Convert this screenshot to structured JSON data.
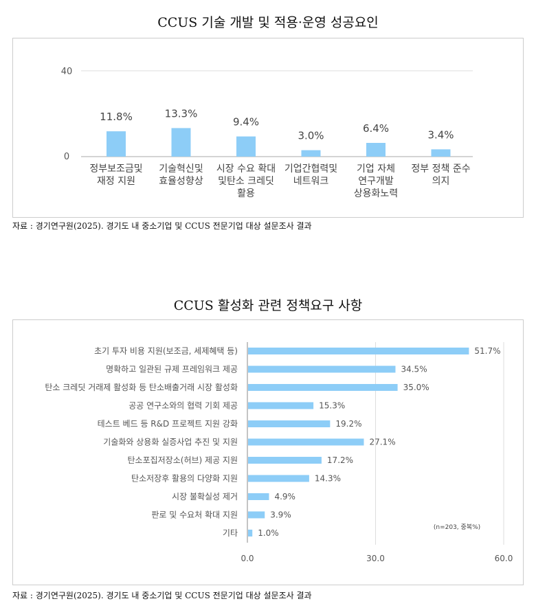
{
  "chart_data": [
    {
      "type": "bar",
      "title": "CCUS 기술 개발 및 적용·운영 성공요인",
      "ylim": [
        0,
        40
      ],
      "yticks": [
        "0",
        "40"
      ],
      "categories": [
        [
          "정부보조금및",
          "재정 지원"
        ],
        [
          "기술혁신및",
          "효율성향상"
        ],
        [
          "시장 수요 확대",
          "및탄소 크레딧",
          "활용"
        ],
        [
          "기업간협력및",
          "네트워크"
        ],
        [
          "기업 자체",
          "연구개발",
          "상용화노력"
        ],
        [
          "정부 정책 준수",
          "의지"
        ]
      ],
      "values": [
        11.8,
        13.3,
        9.4,
        3.0,
        6.4,
        3.4
      ],
      "labels": [
        "11.8%",
        "13.3%",
        "9.4%",
        "3.0%",
        "6.4%",
        "3.4%"
      ],
      "source": "자료 : 경기연구원(2025). 경기도 내 중소기업 및 CCUS 전문기업 대상 설문조사 결과",
      "color": "#8dcdf7"
    },
    {
      "type": "bar",
      "orientation": "horizontal",
      "title": "CCUS 활성화 관련 정책요구 사항",
      "xlim": [
        0,
        60
      ],
      "xticks": [
        "0.0",
        "30.0",
        "60.0"
      ],
      "categories": [
        "초기 투자 비용 지원(보조금, 세제혜택 등)",
        "명확하고 일관된 규제 프레임워크 제공",
        "탄소 크레딧 거래제 활성화 등 탄소배출거래 시장 활성화",
        "공공 연구소와의 협력 기회 제공",
        "테스트 베드 등 R&D 프로젝트 지원 강화",
        "기술화와 상용화 실증사업 추진 및 지원",
        "탄소포집저장소(허브) 제공 지원",
        "탄소저장후 활용의 다양화 지원",
        "시장 불확실성 제거",
        "판로 및 수요처 확대 지원",
        "기타"
      ],
      "values": [
        51.7,
        34.5,
        35.0,
        15.3,
        19.2,
        27.1,
        17.2,
        14.3,
        4.9,
        3.9,
        1.0
      ],
      "labels": [
        "51.7%",
        "34.5%",
        "35.0%",
        "15.3%",
        "19.2%",
        "27.1%",
        "17.2%",
        "14.3%",
        "4.9%",
        "3.9%",
        "1.0%"
      ],
      "note": "(n=203, 중복%)",
      "source": "자료 : 경기연구원(2025). 경기도 내 중소기업 및 CCUS 전문기업 대상 설문조사 결과",
      "color": "#8dcdf7"
    }
  ]
}
